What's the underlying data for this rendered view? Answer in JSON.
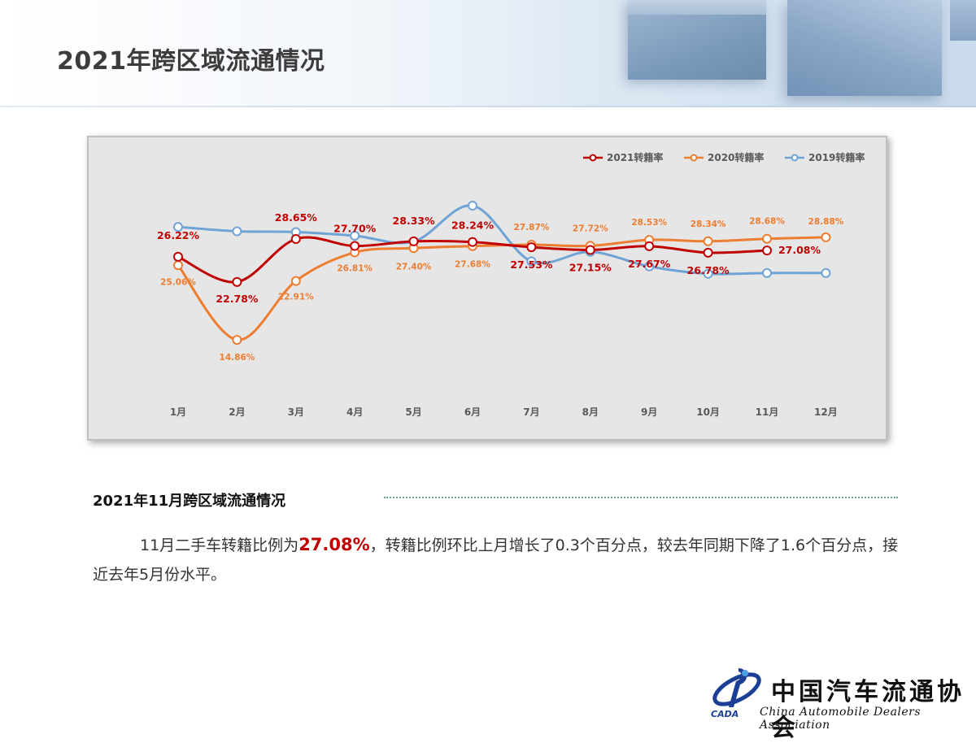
{
  "header": {
    "title": "2021年跨区域流通情况"
  },
  "chart_data": {
    "type": "line",
    "categories": [
      "1月",
      "2月",
      "3月",
      "4月",
      "5月",
      "6月",
      "7月",
      "8月",
      "9月",
      "10月",
      "11月",
      "12月"
    ],
    "series": [
      {
        "name": "2021转籍率",
        "color": "#c00000",
        "values": [
          26.22,
          22.78,
          28.65,
          27.7,
          28.33,
          28.24,
          27.53,
          27.15,
          27.67,
          26.78,
          27.08,
          null
        ],
        "labels": [
          "26.22%",
          "22.78%",
          "28.65%",
          "27.70%",
          "28.33%",
          "28.24%",
          "27.53%",
          "27.15%",
          "27.67%",
          "26.78%",
          "27.08%",
          ""
        ]
      },
      {
        "name": "2020转籍率",
        "color": "#ed7d31",
        "values": [
          25.06,
          14.86,
          22.91,
          26.81,
          27.4,
          27.68,
          27.87,
          27.72,
          28.53,
          28.34,
          28.68,
          28.88
        ],
        "labels": [
          "25.06%",
          "14.86%",
          "22.91%",
          "26.81%",
          "27.40%",
          "27.68%",
          "27.87%",
          "27.72%",
          "28.53%",
          "28.34%",
          "28.68%",
          "28.88%"
        ]
      },
      {
        "name": "2019转籍率",
        "color": "#6fa3d6",
        "values": [
          30.3,
          29.7,
          29.6,
          29.1,
          28.3,
          33.2,
          25.6,
          26.9,
          24.9,
          23.9,
          24.0,
          24.0
        ],
        "labels": [
          "",
          "",
          "",
          "",
          "",
          "",
          "",
          "",
          "",
          "",
          "",
          ""
        ]
      }
    ],
    "legend_position": "top-right",
    "grid": false
  },
  "section": {
    "title": "2021年11月跨区域流通情况",
    "para_before": "11月二手车转籍比例为",
    "para_highlight": "27.08%",
    "para_after": "，转籍比例环比上月增长了0.3个百分点，较去年同期下降了1.6个百分点，接近去年5月份水平。"
  },
  "logo": {
    "cn": "中国汽车流通协会",
    "en": "China Automobile Dealers Association",
    "abbr": "CADA"
  },
  "colors": {
    "title": "#3c3c3c",
    "highlight": "#c00000"
  }
}
